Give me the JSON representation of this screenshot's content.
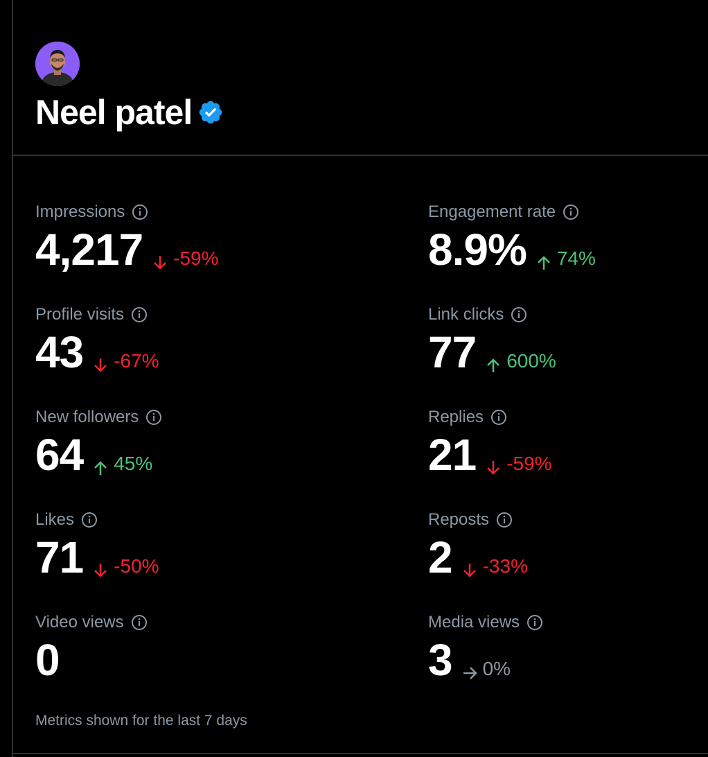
{
  "profile": {
    "name": "Neel patel",
    "verified": true,
    "avatar_bg": "#8b5cf6"
  },
  "colors": {
    "down": "#f4212e",
    "up": "#4cc27a",
    "flat": "#8b98a5",
    "verified": "#1d9bf0"
  },
  "metrics": {
    "impressions": {
      "label": "Impressions",
      "value": "4,217",
      "delta": "-59%",
      "direction": "down"
    },
    "engagement_rate": {
      "label": "Engagement rate",
      "value": "8.9%",
      "delta": "74%",
      "direction": "up"
    },
    "profile_visits": {
      "label": "Profile visits",
      "value": "43",
      "delta": "-67%",
      "direction": "down"
    },
    "link_clicks": {
      "label": "Link clicks",
      "value": "77",
      "delta": "600%",
      "direction": "up"
    },
    "new_followers": {
      "label": "New followers",
      "value": "64",
      "delta": "45%",
      "direction": "up"
    },
    "replies": {
      "label": "Replies",
      "value": "21",
      "delta": "-59%",
      "direction": "down"
    },
    "likes": {
      "label": "Likes",
      "value": "71",
      "delta": "-50%",
      "direction": "down"
    },
    "reposts": {
      "label": "Reposts",
      "value": "2",
      "delta": "-33%",
      "direction": "down"
    },
    "video_views": {
      "label": "Video views",
      "value": "0",
      "delta": "",
      "direction": "none"
    },
    "media_views": {
      "label": "Media views",
      "value": "3",
      "delta": "0%",
      "direction": "flat"
    }
  },
  "footer": {
    "note": "Metrics shown for the last 7 days"
  }
}
